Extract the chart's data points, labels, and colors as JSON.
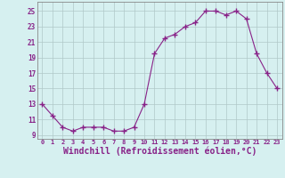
{
  "x": [
    0,
    1,
    2,
    3,
    4,
    5,
    6,
    7,
    8,
    9,
    10,
    11,
    12,
    13,
    14,
    15,
    16,
    17,
    18,
    19,
    20,
    21,
    22,
    23
  ],
  "y": [
    13,
    11.5,
    10,
    9.5,
    10,
    10,
    10,
    9.5,
    9.5,
    10,
    13,
    19.5,
    21.5,
    22,
    23,
    23.5,
    25,
    25,
    24.5,
    25,
    24,
    19.5,
    17,
    15
  ],
  "line_color": "#882288",
  "marker": "+",
  "marker_size": 4,
  "background_color": "#d6f0f0",
  "grid_color": "#b0c8c8",
  "xlabel": "Windchill (Refroidissement éolien,°C)",
  "xlabel_fontsize": 7,
  "yticks": [
    9,
    11,
    13,
    15,
    17,
    19,
    21,
    23,
    25
  ],
  "xticks": [
    0,
    1,
    2,
    3,
    4,
    5,
    6,
    7,
    8,
    9,
    10,
    11,
    12,
    13,
    14,
    15,
    16,
    17,
    18,
    19,
    20,
    21,
    22,
    23
  ],
  "ylim": [
    8.5,
    26.2
  ],
  "xlim": [
    -0.5,
    23.5
  ]
}
